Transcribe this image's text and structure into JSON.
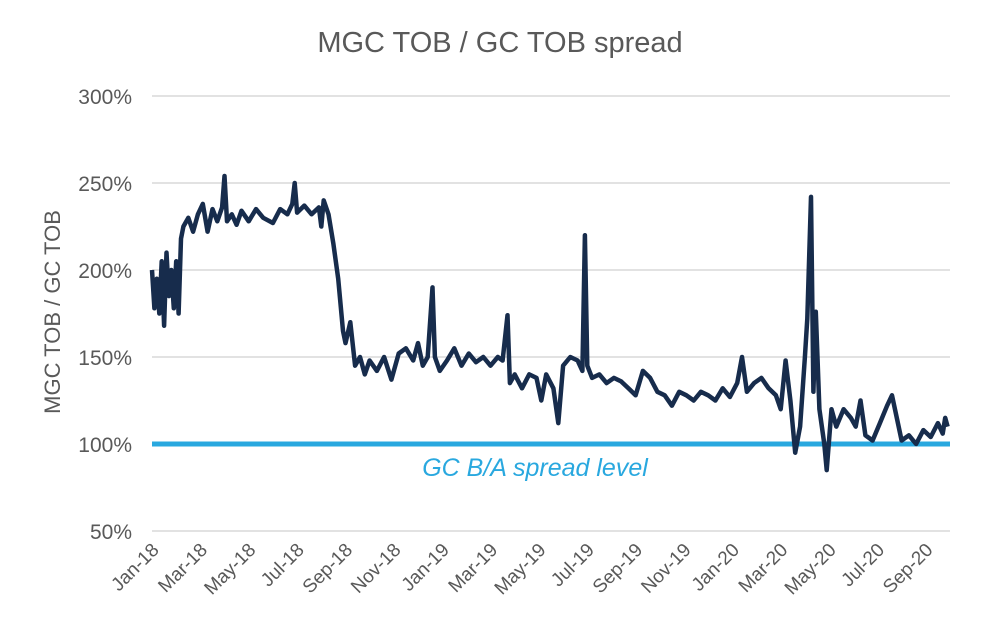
{
  "chart_data": {
    "type": "line",
    "title": "MGC TOB / GC TOB spread",
    "y_label": "MGC TOB / GC TOB",
    "color": "#172c4c",
    "grid": true,
    "x": [
      0,
      0.1,
      0.2,
      0.3,
      0.4,
      0.5,
      0.6,
      0.7,
      0.8,
      0.9,
      1.0,
      1.1,
      1.2,
      1.3,
      1.5,
      1.7,
      1.9,
      2.1,
      2.3,
      2.5,
      2.7,
      2.9,
      3.0,
      3.1,
      3.3,
      3.5,
      3.7,
      4.0,
      4.3,
      4.6,
      5.0,
      5.3,
      5.6,
      5.8,
      5.9,
      6.0,
      6.3,
      6.6,
      6.9,
      7.0,
      7.1,
      7.3,
      7.5,
      7.7,
      7.9,
      8.0,
      8.2,
      8.4,
      8.6,
      8.8,
      9.0,
      9.3,
      9.6,
      9.9,
      10.2,
      10.5,
      10.8,
      11.0,
      11.2,
      11.4,
      11.6,
      11.7,
      11.9,
      12.2,
      12.5,
      12.8,
      13.1,
      13.4,
      13.7,
      14.0,
      14.3,
      14.5,
      14.7,
      14.8,
      15.0,
      15.3,
      15.6,
      15.9,
      16.1,
      16.3,
      16.6,
      16.8,
      17.0,
      17.3,
      17.6,
      17.8,
      17.9,
      18.0,
      18.2,
      18.5,
      18.8,
      19.1,
      19.4,
      19.7,
      20.0,
      20.3,
      20.6,
      20.9,
      21.2,
      21.5,
      21.8,
      22.1,
      22.4,
      22.7,
      23.0,
      23.3,
      23.6,
      23.9,
      24.2,
      24.4,
      24.6,
      24.9,
      25.2,
      25.5,
      25.8,
      26.0,
      26.2,
      26.4,
      26.6,
      26.8,
      27.0,
      27.1,
      27.25,
      27.35,
      27.45,
      27.6,
      27.8,
      27.9,
      28.1,
      28.3,
      28.6,
      28.9,
      29.1,
      29.3,
      29.5,
      29.8,
      30.1,
      30.4,
      30.6,
      30.8,
      31.0,
      31.3,
      31.6,
      31.9,
      32.2,
      32.5,
      32.7,
      32.8,
      32.9
    ],
    "values": [
      200,
      178,
      195,
      175,
      205,
      168,
      210,
      185,
      200,
      178,
      205,
      175,
      218,
      225,
      230,
      222,
      232,
      238,
      222,
      235,
      228,
      236,
      254,
      228,
      232,
      226,
      234,
      228,
      235,
      230,
      227,
      235,
      232,
      238,
      250,
      233,
      237,
      232,
      236,
      225,
      240,
      232,
      215,
      195,
      165,
      158,
      170,
      145,
      150,
      140,
      148,
      142,
      150,
      137,
      152,
      155,
      148,
      158,
      145,
      150,
      190,
      150,
      142,
      148,
      155,
      145,
      152,
      147,
      150,
      145,
      150,
      148,
      174,
      135,
      140,
      132,
      140,
      138,
      125,
      140,
      132,
      112,
      145,
      150,
      148,
      142,
      220,
      145,
      138,
      140,
      135,
      138,
      136,
      132,
      128,
      142,
      138,
      130,
      128,
      122,
      130,
      128,
      125,
      130,
      128,
      125,
      132,
      127,
      135,
      150,
      130,
      135,
      138,
      132,
      128,
      120,
      148,
      125,
      95,
      110,
      150,
      172,
      242,
      130,
      176,
      120,
      100,
      85,
      120,
      110,
      120,
      115,
      110,
      125,
      105,
      102,
      112,
      122,
      128,
      115,
      102,
      105,
      100,
      108,
      104,
      112,
      106,
      115,
      110
    ],
    "xlim": [
      0,
      33
    ],
    "xticks": [
      {
        "value": 0,
        "label": "Jan-18"
      },
      {
        "value": 2,
        "label": "Mar-18"
      },
      {
        "value": 4,
        "label": "May-18"
      },
      {
        "value": 6,
        "label": "Jul-18"
      },
      {
        "value": 8,
        "label": "Sep-18"
      },
      {
        "value": 10,
        "label": "Nov-18"
      },
      {
        "value": 12,
        "label": "Jan-19"
      },
      {
        "value": 14,
        "label": "Mar-19"
      },
      {
        "value": 16,
        "label": "May-19"
      },
      {
        "value": 18,
        "label": "Jul-19"
      },
      {
        "value": 20,
        "label": "Sep-19"
      },
      {
        "value": 22,
        "label": "Nov-19"
      },
      {
        "value": 24,
        "label": "Jan-20"
      },
      {
        "value": 26,
        "label": "Mar-20"
      },
      {
        "value": 28,
        "label": "May-20"
      },
      {
        "value": 30,
        "label": "Jul-20"
      },
      {
        "value": 32,
        "label": "Sep-20"
      }
    ],
    "ylim": [
      50,
      300
    ],
    "yticks": [
      {
        "value": 50,
        "label": "50%"
      },
      {
        "value": 100,
        "label": "100%"
      },
      {
        "value": 150,
        "label": "150%"
      },
      {
        "value": 200,
        "label": "200%"
      },
      {
        "value": 250,
        "label": "250%"
      },
      {
        "value": 300,
        "label": "300%"
      }
    ],
    "reference_line": {
      "value": 100,
      "label": "GC B/A spread level",
      "color": "#29a8df"
    }
  }
}
